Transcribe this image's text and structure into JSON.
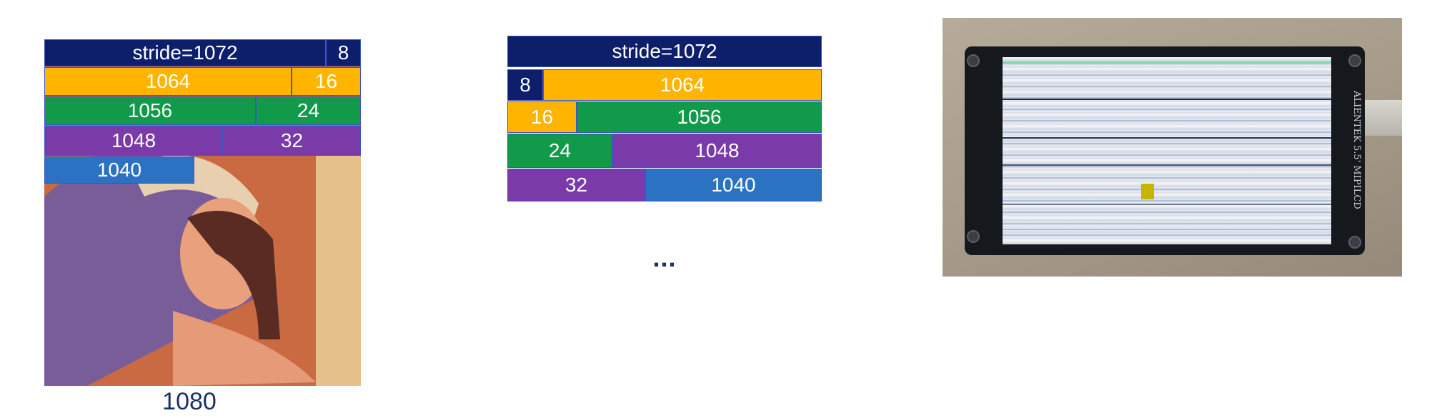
{
  "left_diagram": {
    "header": {
      "stride_label": "stride=1072",
      "offset": "8"
    },
    "rows": [
      {
        "main": "1064",
        "offset": "16"
      },
      {
        "main": "1056",
        "offset": "24"
      },
      {
        "main": "1048",
        "offset": "32"
      },
      {
        "main": "1040"
      }
    ],
    "caption": "1080"
  },
  "middle_diagram": {
    "header": {
      "stride_label": "stride=1072"
    },
    "rows": [
      {
        "offset": "8",
        "main": "1064"
      },
      {
        "offset": "16",
        "main": "1056"
      },
      {
        "offset": "24",
        "main": "1048"
      },
      {
        "offset": "32",
        "main": "1040"
      }
    ],
    "ellipsis": "..."
  },
  "right_photo": {
    "brand_text": "ALIENTEK 5.5' MIPILCD"
  }
}
